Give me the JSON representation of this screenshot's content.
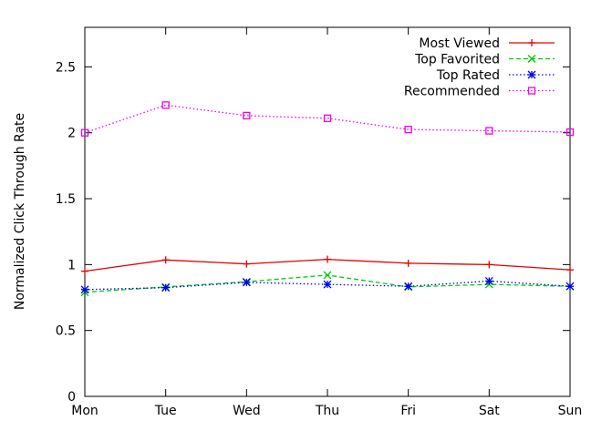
{
  "chart_data": {
    "type": "line",
    "title": "",
    "xlabel": "",
    "ylabel": "Normalized Click Through Rate",
    "categories": [
      "Mon",
      "Tue",
      "Wed",
      "Thu",
      "Fri",
      "Sat",
      "Sun"
    ],
    "ylim": [
      0,
      2.8
    ],
    "yticks": [
      "0",
      "0.5",
      "1",
      "1.5",
      "2",
      "2.5"
    ],
    "grid": false,
    "legend_position": "top-right",
    "series": [
      {
        "name": "Most Viewed",
        "color": "#e00000",
        "dash": "solid",
        "marker": "plus",
        "values": [
          0.95,
          1.035,
          1.005,
          1.04,
          1.01,
          1.0,
          0.96
        ]
      },
      {
        "name": "Top Favorited",
        "color": "#00cc00",
        "dash": "dashed",
        "marker": "cross",
        "values": [
          0.79,
          0.83,
          0.87,
          0.92,
          0.83,
          0.85,
          0.835
        ]
      },
      {
        "name": "Top Rated",
        "color": "#0000ee",
        "dash": "dotted",
        "marker": "star",
        "values": [
          0.81,
          0.825,
          0.865,
          0.85,
          0.835,
          0.875,
          0.835
        ]
      },
      {
        "name": "Recommended",
        "color": "#ee00ee",
        "dash": "dotted",
        "marker": "square",
        "values": [
          2.0,
          2.21,
          2.13,
          2.11,
          2.025,
          2.015,
          2.005
        ]
      }
    ]
  }
}
